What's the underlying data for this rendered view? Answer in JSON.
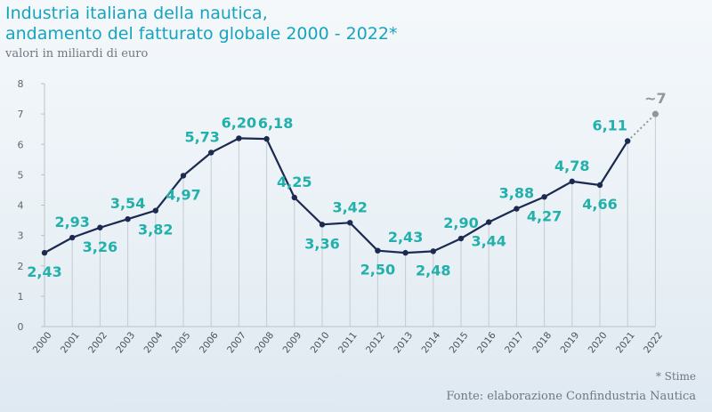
{
  "header": {
    "title_line1": "Industria italiana della nautica,",
    "title_line2": "andamento del fatturato globale 2000 - 2022*",
    "subtitle": "valori in miliardi di euro"
  },
  "footer": {
    "note": "* Stime",
    "source": "Fonte: elaborazione Confindustria Nautica"
  },
  "colors": {
    "line": "#1c2a52",
    "label": "#22b0ab",
    "estimate": "#8e979e",
    "title": "#17a3c0"
  },
  "chart_data": {
    "type": "line",
    "x": [
      "2000",
      "2001",
      "2002",
      "2003",
      "2004",
      "2005",
      "2006",
      "2007",
      "2008",
      "2009",
      "2010",
      "2011",
      "2012",
      "2013",
      "2014",
      "2015",
      "2016",
      "2017",
      "2018",
      "2019",
      "2020",
      "2021",
      "2022"
    ],
    "values": [
      2.43,
      2.93,
      3.26,
      3.54,
      3.82,
      4.97,
      5.73,
      6.2,
      6.18,
      4.25,
      3.36,
      3.42,
      2.5,
      2.43,
      2.48,
      2.9,
      3.44,
      3.88,
      4.27,
      4.78,
      4.66,
      6.11,
      7
    ],
    "labels": [
      "2,43",
      "2,93",
      "3,26",
      "3,54",
      "3,82",
      "4,97",
      "5,73",
      "6,20",
      "6,18",
      "4,25",
      "3,36",
      "3,42",
      "2,50",
      "2,43",
      "2,48",
      "2,90",
      "3,44",
      "3,88",
      "4,27",
      "4,78",
      "4,66",
      "6,11",
      "~7"
    ],
    "estimated": [
      false,
      false,
      false,
      false,
      false,
      false,
      false,
      false,
      false,
      false,
      false,
      false,
      false,
      false,
      false,
      false,
      false,
      false,
      false,
      false,
      false,
      false,
      true
    ],
    "yticks": [
      "0",
      "1",
      "2",
      "3",
      "4",
      "5",
      "6",
      "7",
      "8"
    ],
    "ylim": [
      0,
      8
    ],
    "grid": "vertical",
    "legend": "none"
  }
}
